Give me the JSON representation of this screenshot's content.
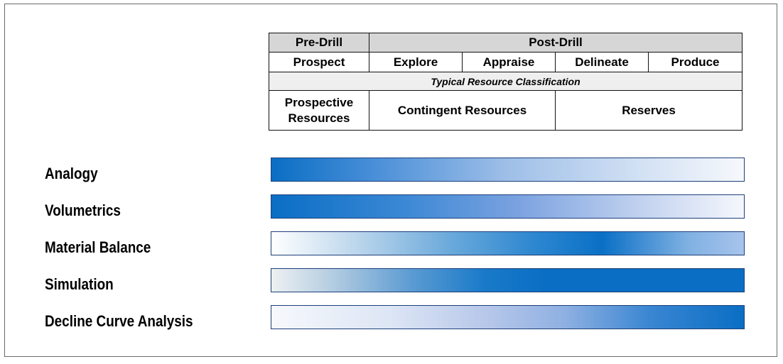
{
  "header_table": {
    "phase_row": {
      "pre_drill": "Pre-Drill",
      "post_drill": "Post-Drill"
    },
    "stages": [
      "Prospect",
      "Explore",
      "Appraise",
      "Delineate",
      "Produce"
    ],
    "classification_title": "Typical Resource Classification",
    "resource_classes": {
      "prospective_line1": "Prospective",
      "prospective_line2": "Resources",
      "contingent": "Contingent Resources",
      "reserves": "Reserves"
    }
  },
  "methods": [
    {
      "label": "Analogy"
    },
    {
      "label": "Volumetrics"
    },
    {
      "label": "Material Balance"
    },
    {
      "label": "Simulation"
    },
    {
      "label": "Decline Curve Analysis"
    }
  ],
  "colors": {
    "strong_applicability": "#0a6ec4",
    "weak_applicability": "#f6f8fc",
    "bar_border": "#1c3f7a",
    "header_fill": "#d6d6d6"
  }
}
